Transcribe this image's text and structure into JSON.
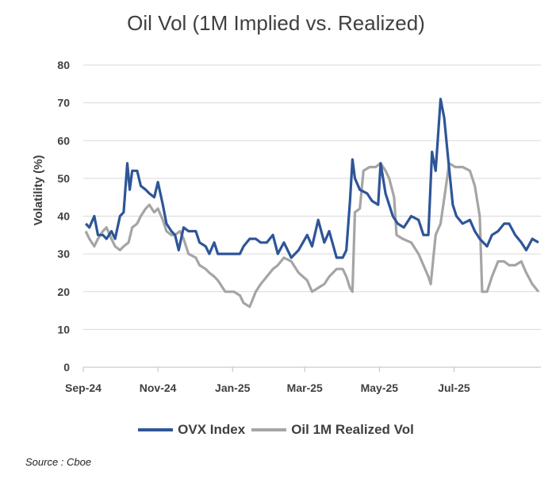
{
  "chart_data": {
    "type": "line",
    "title": "Oil Vol (1M Implied vs. Realized)",
    "ylabel": "Volatility (%)",
    "xlabel": "",
    "ylim": [
      0,
      80
    ],
    "yticks": [
      0,
      10,
      20,
      30,
      40,
      50,
      60,
      70,
      80
    ],
    "xticks": [
      "Sep-24",
      "Nov-24",
      "Jan-25",
      "Mar-25",
      "May-25",
      "Jul-25"
    ],
    "grid": "horizontal",
    "legend_position": "bottom",
    "series": [
      {
        "name": "OVX Index",
        "color": "#2e5597",
        "points": [
          [
            "2024-09-03",
            38
          ],
          [
            "2024-09-06",
            37
          ],
          [
            "2024-09-10",
            40
          ],
          [
            "2024-09-13",
            35
          ],
          [
            "2024-09-17",
            35
          ],
          [
            "2024-09-20",
            34
          ],
          [
            "2024-09-24",
            36
          ],
          [
            "2024-09-27",
            34
          ],
          [
            "2024-10-01",
            40
          ],
          [
            "2024-10-04",
            41
          ],
          [
            "2024-10-07",
            54
          ],
          [
            "2024-10-09",
            47
          ],
          [
            "2024-10-11",
            52
          ],
          [
            "2024-10-15",
            52
          ],
          [
            "2024-10-18",
            48
          ],
          [
            "2024-10-22",
            47
          ],
          [
            "2024-10-25",
            46
          ],
          [
            "2024-10-29",
            45
          ],
          [
            "2024-11-01",
            49
          ],
          [
            "2024-11-05",
            43
          ],
          [
            "2024-11-08",
            38
          ],
          [
            "2024-11-12",
            36
          ],
          [
            "2024-11-15",
            35
          ],
          [
            "2024-11-18",
            31
          ],
          [
            "2024-11-22",
            37
          ],
          [
            "2024-11-26",
            36
          ],
          [
            "2024-12-02",
            36
          ],
          [
            "2024-12-05",
            33
          ],
          [
            "2024-12-10",
            32
          ],
          [
            "2024-12-13",
            30
          ],
          [
            "2024-12-17",
            33
          ],
          [
            "2024-12-20",
            30
          ],
          [
            "2024-12-26",
            30
          ],
          [
            "2025-01-02",
            30
          ],
          [
            "2025-01-07",
            30
          ],
          [
            "2025-01-10",
            32
          ],
          [
            "2025-01-15",
            34
          ],
          [
            "2025-01-20",
            34
          ],
          [
            "2025-01-24",
            33
          ],
          [
            "2025-01-29",
            33
          ],
          [
            "2025-02-03",
            35
          ],
          [
            "2025-02-07",
            30
          ],
          [
            "2025-02-12",
            33
          ],
          [
            "2025-02-18",
            29
          ],
          [
            "2025-02-24",
            31
          ],
          [
            "2025-03-03",
            35
          ],
          [
            "2025-03-07",
            32
          ],
          [
            "2025-03-12",
            39
          ],
          [
            "2025-03-17",
            33
          ],
          [
            "2025-03-21",
            36
          ],
          [
            "2025-03-27",
            29
          ],
          [
            "2025-04-01",
            29
          ],
          [
            "2025-04-04",
            31
          ],
          [
            "2025-04-07",
            44
          ],
          [
            "2025-04-09",
            55
          ],
          [
            "2025-04-11",
            50
          ],
          [
            "2025-04-15",
            47
          ],
          [
            "2025-04-21",
            46
          ],
          [
            "2025-04-25",
            44
          ],
          [
            "2025-04-30",
            43
          ],
          [
            "2025-05-02",
            54
          ],
          [
            "2025-05-06",
            46
          ],
          [
            "2025-05-12",
            40
          ],
          [
            "2025-05-16",
            38
          ],
          [
            "2025-05-21",
            37
          ],
          [
            "2025-05-27",
            40
          ],
          [
            "2025-06-02",
            39
          ],
          [
            "2025-06-06",
            35
          ],
          [
            "2025-06-10",
            35
          ],
          [
            "2025-06-13",
            57
          ],
          [
            "2025-06-16",
            52
          ],
          [
            "2025-06-20",
            71
          ],
          [
            "2025-06-23",
            66
          ],
          [
            "2025-06-26",
            56
          ],
          [
            "2025-06-30",
            43
          ],
          [
            "2025-07-03",
            40
          ],
          [
            "2025-07-08",
            38
          ],
          [
            "2025-07-14",
            39
          ],
          [
            "2025-07-18",
            36
          ],
          [
            "2025-07-22",
            34
          ],
          [
            "2025-07-28",
            32
          ],
          [
            "2025-08-01",
            35
          ],
          [
            "2025-08-06",
            36
          ],
          [
            "2025-08-11",
            38
          ],
          [
            "2025-08-15",
            38
          ],
          [
            "2025-08-20",
            35
          ],
          [
            "2025-08-25",
            33
          ],
          [
            "2025-08-29",
            31
          ],
          [
            "2025-09-03",
            34
          ],
          [
            "2025-09-08",
            33
          ]
        ]
      },
      {
        "name": "Oil 1M Realized Vol",
        "color": "#a5a5a5",
        "points": [
          [
            "2024-09-03",
            36
          ],
          [
            "2024-09-06",
            34
          ],
          [
            "2024-09-10",
            32
          ],
          [
            "2024-09-13",
            34
          ],
          [
            "2024-09-17",
            36
          ],
          [
            "2024-09-20",
            37
          ],
          [
            "2024-09-24",
            34
          ],
          [
            "2024-09-27",
            32
          ],
          [
            "2024-10-01",
            31
          ],
          [
            "2024-10-04",
            32
          ],
          [
            "2024-10-08",
            33
          ],
          [
            "2024-10-11",
            37
          ],
          [
            "2024-10-15",
            38
          ],
          [
            "2024-10-18",
            40
          ],
          [
            "2024-10-22",
            42
          ],
          [
            "2024-10-25",
            43
          ],
          [
            "2024-10-29",
            41
          ],
          [
            "2024-11-01",
            42
          ],
          [
            "2024-11-05",
            39
          ],
          [
            "2024-11-08",
            36
          ],
          [
            "2024-11-12",
            35
          ],
          [
            "2024-11-15",
            35
          ],
          [
            "2024-11-19",
            36
          ],
          [
            "2024-11-22",
            34
          ],
          [
            "2024-11-26",
            30
          ],
          [
            "2024-12-02",
            29
          ],
          [
            "2024-12-05",
            27
          ],
          [
            "2024-12-10",
            26
          ],
          [
            "2024-12-13",
            25
          ],
          [
            "2024-12-17",
            24
          ],
          [
            "2024-12-20",
            23
          ],
          [
            "2024-12-26",
            20
          ],
          [
            "2025-01-02",
            20
          ],
          [
            "2025-01-07",
            19
          ],
          [
            "2025-01-10",
            17
          ],
          [
            "2025-01-15",
            16
          ],
          [
            "2025-01-20",
            20
          ],
          [
            "2025-01-24",
            22
          ],
          [
            "2025-01-29",
            24
          ],
          [
            "2025-02-03",
            26
          ],
          [
            "2025-02-07",
            27
          ],
          [
            "2025-02-12",
            29
          ],
          [
            "2025-02-18",
            28
          ],
          [
            "2025-02-24",
            25
          ],
          [
            "2025-03-03",
            23
          ],
          [
            "2025-03-07",
            20
          ],
          [
            "2025-03-12",
            21
          ],
          [
            "2025-03-17",
            22
          ],
          [
            "2025-03-21",
            24
          ],
          [
            "2025-03-27",
            26
          ],
          [
            "2025-04-01",
            26
          ],
          [
            "2025-04-04",
            24
          ],
          [
            "2025-04-07",
            21
          ],
          [
            "2025-04-09",
            20
          ],
          [
            "2025-04-11",
            41
          ],
          [
            "2025-04-15",
            42
          ],
          [
            "2025-04-18",
            52
          ],
          [
            "2025-04-23",
            53
          ],
          [
            "2025-04-28",
            53
          ],
          [
            "2025-05-02",
            54
          ],
          [
            "2025-05-06",
            52
          ],
          [
            "2025-05-09",
            50
          ],
          [
            "2025-05-13",
            45
          ],
          [
            "2025-05-15",
            35
          ],
          [
            "2025-05-20",
            34
          ],
          [
            "2025-05-27",
            33
          ],
          [
            "2025-06-02",
            30
          ],
          [
            "2025-06-06",
            27
          ],
          [
            "2025-06-10",
            24
          ],
          [
            "2025-06-12",
            22
          ],
          [
            "2025-06-16",
            35
          ],
          [
            "2025-06-20",
            38
          ],
          [
            "2025-06-24",
            47
          ],
          [
            "2025-06-27",
            54
          ],
          [
            "2025-07-02",
            53
          ],
          [
            "2025-07-08",
            53
          ],
          [
            "2025-07-14",
            52
          ],
          [
            "2025-07-18",
            48
          ],
          [
            "2025-07-22",
            40
          ],
          [
            "2025-07-24",
            20
          ],
          [
            "2025-07-28",
            20
          ],
          [
            "2025-08-01",
            24
          ],
          [
            "2025-08-06",
            28
          ],
          [
            "2025-08-11",
            28
          ],
          [
            "2025-08-15",
            27
          ],
          [
            "2025-08-20",
            27
          ],
          [
            "2025-08-25",
            28
          ],
          [
            "2025-08-29",
            25
          ],
          [
            "2025-09-03",
            22
          ],
          [
            "2025-09-08",
            20
          ]
        ]
      }
    ]
  },
  "source": "Source : Cboe"
}
